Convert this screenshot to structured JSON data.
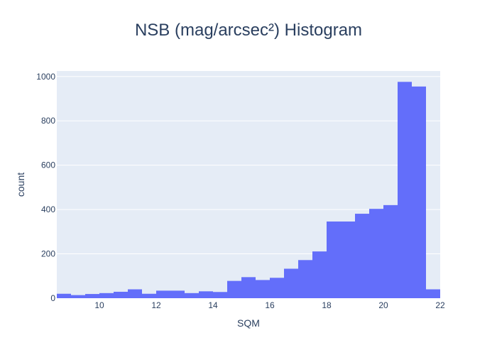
{
  "chart_data": {
    "type": "histogram",
    "title": "NSB (mag/arcsec²) Histogram",
    "xlabel": "SQM",
    "ylabel": "count",
    "xlim": [
      8.5,
      22
    ],
    "ylim": [
      0,
      1025
    ],
    "bin_width": 0.5,
    "bins_start": [
      8.5,
      9,
      9.5,
      10,
      10.5,
      11,
      11.5,
      12,
      12.5,
      13,
      13.5,
      14,
      14.5,
      15,
      15.5,
      16,
      16.5,
      17,
      17.5,
      18,
      18.5,
      19,
      19.5,
      20,
      20.5,
      21,
      21.5
    ],
    "counts": [
      20,
      14,
      19,
      23,
      29,
      40,
      20,
      34,
      34,
      23,
      31,
      28,
      78,
      95,
      82,
      92,
      133,
      172,
      211,
      346,
      346,
      381,
      403,
      420,
      976,
      955,
      40
    ],
    "x_ticks": [
      10,
      12,
      14,
      16,
      18,
      20,
      22
    ],
    "x_tick_labels": [
      "10",
      "12",
      "14",
      "16",
      "18",
      "20",
      "22"
    ],
    "y_ticks": [
      0,
      200,
      400,
      600,
      800,
      1000
    ],
    "y_tick_labels": [
      "0",
      "200",
      "400",
      "600",
      "800",
      "1000"
    ],
    "grid": true,
    "legend": "none",
    "colors": {
      "bar": "#636efa",
      "plot_bg": "#e5ecf6",
      "grid": "#ffffff",
      "text": "#2a3f5f"
    }
  }
}
